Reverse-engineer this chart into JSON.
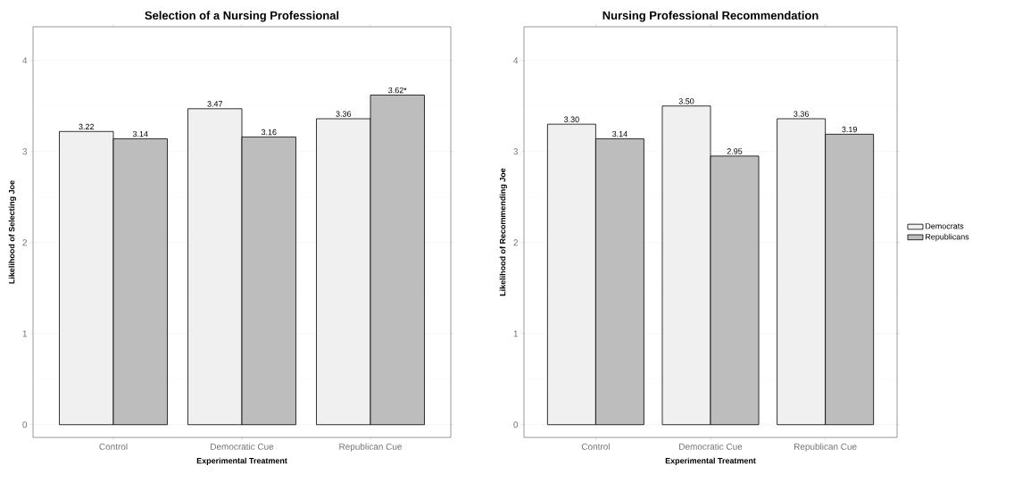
{
  "chart_data": [
    {
      "type": "bar",
      "title": "Selection of a Nursing Professional",
      "xlabel": "Experimental Treatment",
      "ylabel": "Likelihood of Selecting Joe",
      "categories": [
        "Control",
        "Democratic Cue",
        "Republican Cue"
      ],
      "series": [
        {
          "color": "#f0f0f0",
          "values": [
            3.22,
            3.47,
            3.36
          ],
          "value_labels": [
            "3.22",
            "3.47",
            "3.36"
          ]
        },
        {
          "color": "#bdbdbd",
          "values": [
            3.14,
            3.16,
            3.62
          ],
          "value_labels": [
            "3.14",
            "3.16",
            "3.62*"
          ]
        }
      ],
      "ylim": [
        -0.14,
        4.37
      ],
      "yticks": [
        0,
        1,
        2,
        3,
        4
      ],
      "grid": "y",
      "legend": false
    },
    {
      "type": "bar",
      "title": "Nursing Professional Recommendation",
      "xlabel": "Experimental Treatment",
      "ylabel": "Likelihood of Recommending Joe",
      "categories": [
        "Control",
        "Democratic Cue",
        "Republican Cue"
      ],
      "series": [
        {
          "name": "Democrats",
          "color": "#f0f0f0",
          "values": [
            3.3,
            3.5,
            3.36
          ],
          "value_labels": [
            "3.30",
            "3.50",
            "3.36"
          ]
        },
        {
          "name": "Republicans",
          "color": "#bdbdbd",
          "values": [
            3.14,
            2.95,
            3.19
          ],
          "value_labels": [
            "3.14",
            "2.95",
            "3.19"
          ]
        }
      ],
      "ylim": [
        -0.14,
        4.37
      ],
      "yticks": [
        0,
        1,
        2,
        3,
        4
      ],
      "grid": "y",
      "legend": "right"
    }
  ]
}
